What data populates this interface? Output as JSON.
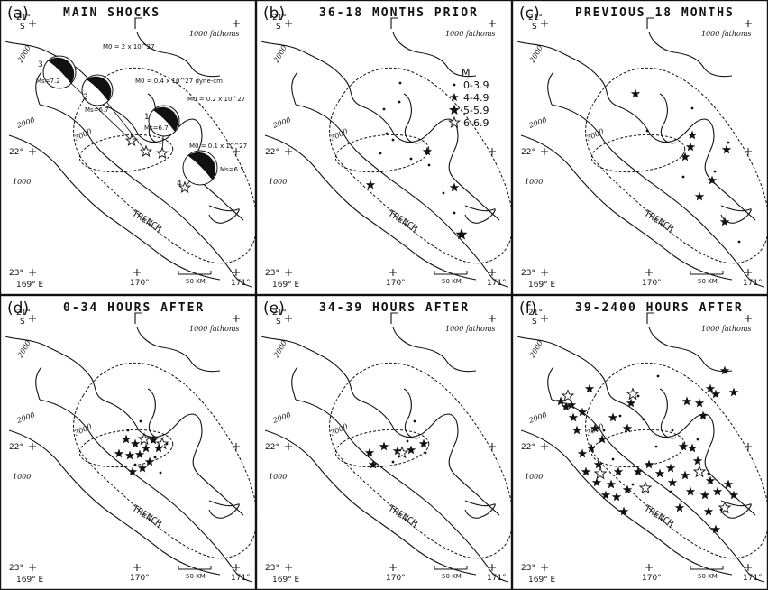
{
  "panels": [
    {
      "letter": "(a)",
      "title": "MAIN SHOCKS"
    },
    {
      "letter": "(b)",
      "title": "36-18 MONTHS PRIOR"
    },
    {
      "letter": "(c)",
      "title": "PREVIOUS 18 MONTHS"
    },
    {
      "letter": "(d)",
      "title": "0-34 HOURS AFTER"
    },
    {
      "letter": "(e)",
      "title": "34-39 HOURS AFTER"
    },
    {
      "letter": "(f)",
      "title": "39-2400 HOURS AFTER"
    }
  ],
  "map_labels": {
    "lat_21": "21°",
    "lat_s": "S",
    "lat_22": "22°",
    "lat_23": "23°",
    "lon_169": "169° E",
    "lon_170": "170°",
    "lon_171": "171°",
    "fathoms": "1000 fathoms",
    "c2000": "2000",
    "c3000": "3000",
    "c1000": "1000",
    "trench": "TRENCH",
    "scale": "50 KM"
  },
  "legend": {
    "title": "M",
    "items": [
      "0-3.9",
      "4-4.9",
      "5-5.9",
      "6-6.9"
    ]
  },
  "mainshocks": [
    {
      "num": "3",
      "mag": "Ms=7.2",
      "moment": "M0 = 2 x 10^27"
    },
    {
      "num": "2",
      "mag": "Ms=6.7",
      "moment": "M0 = 0.4 x 10^27 dyne-cm"
    },
    {
      "num": "1",
      "mag": "Ms=6.7",
      "moment": "M0 = 0.2 x 10^27"
    },
    {
      "num": "4",
      "mag": "Ms=6.5",
      "moment": "M0 = 0.1 x 10^27"
    }
  ]
}
